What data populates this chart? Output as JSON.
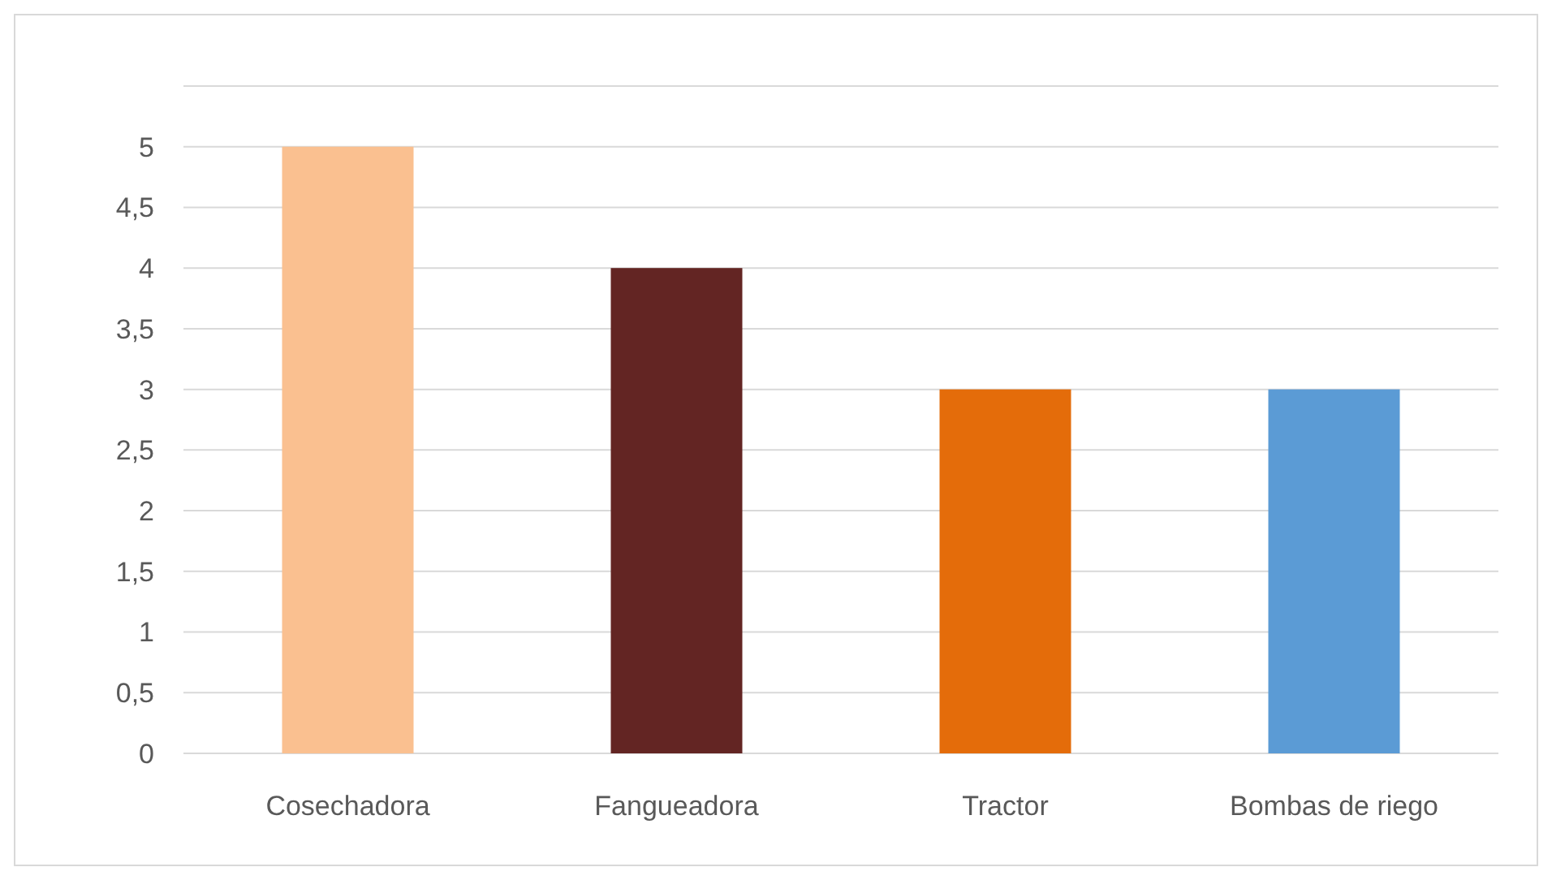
{
  "chart_data": {
    "type": "bar",
    "categories": [
      "Cosechadora",
      "Fangueadora",
      "Tractor",
      "Bombas de riego"
    ],
    "values": [
      5,
      4,
      3,
      3
    ],
    "colors": [
      "#fac090",
      "#632523",
      "#e46c0a",
      "#5b9bd5"
    ],
    "ylim": [
      0,
      5.5
    ],
    "yticks": [
      0,
      {
        "value": 0.5,
        "label": "0,5"
      },
      1,
      {
        "value": 1.5,
        "label": "1,5"
      },
      2,
      {
        "value": 2.5,
        "label": "2,5"
      },
      3,
      {
        "value": 3.5,
        "label": "3,5"
      },
      4,
      {
        "value": 4.5,
        "label": "4,5"
      },
      5
    ],
    "grid": "y"
  }
}
